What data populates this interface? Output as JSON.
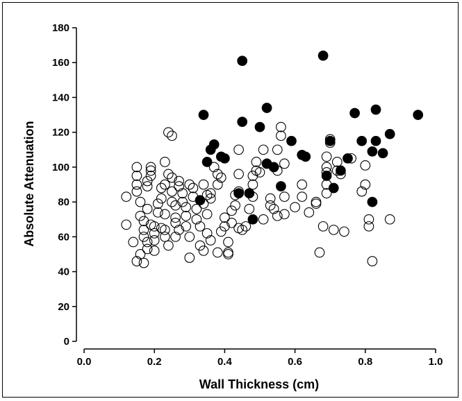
{
  "chart_data": {
    "type": "scatter",
    "title": "",
    "xlabel": "Wall Thickness (cm)",
    "ylabel": "Absolute Attenuation",
    "xlim": [
      0.0,
      1.0
    ],
    "ylim": [
      0,
      180
    ],
    "x_ticks": [
      "0.0",
      "0.2",
      "0.4",
      "0.6",
      "0.8",
      "1.0"
    ],
    "y_ticks": [
      "0",
      "20",
      "40",
      "60",
      "80",
      "100",
      "120",
      "140",
      "160",
      "180"
    ],
    "grid": false,
    "legend": "none",
    "colors": {
      "open_marker": "#000000",
      "filled_marker": "#000000",
      "axis": "#000000"
    },
    "series": [
      {
        "marker": "open",
        "points": [
          [
            0.12,
            67
          ],
          [
            0.12,
            83
          ],
          [
            0.14,
            57
          ],
          [
            0.15,
            46
          ],
          [
            0.15,
            100
          ],
          [
            0.15,
            95
          ],
          [
            0.15,
            90
          ],
          [
            0.15,
            86
          ],
          [
            0.16,
            80
          ],
          [
            0.16,
            72
          ],
          [
            0.17,
            69
          ],
          [
            0.17,
            64
          ],
          [
            0.17,
            60
          ],
          [
            0.16,
            50
          ],
          [
            0.17,
            45
          ],
          [
            0.18,
            57
          ],
          [
            0.18,
            53
          ],
          [
            0.18,
            89
          ],
          [
            0.18,
            92
          ],
          [
            0.18,
            76
          ],
          [
            0.19,
            95
          ],
          [
            0.19,
            98
          ],
          [
            0.19,
            100
          ],
          [
            0.19,
            67
          ],
          [
            0.2,
            66
          ],
          [
            0.2,
            62
          ],
          [
            0.2,
            58
          ],
          [
            0.2,
            52
          ],
          [
            0.21,
            79
          ],
          [
            0.21,
            74
          ],
          [
            0.22,
            65
          ],
          [
            0.22,
            82
          ],
          [
            0.22,
            88
          ],
          [
            0.23,
            90
          ],
          [
            0.23,
            73
          ],
          [
            0.23,
            64
          ],
          [
            0.23,
            60
          ],
          [
            0.24,
            55
          ],
          [
            0.24,
            120
          ],
          [
            0.25,
            118
          ],
          [
            0.24,
            96
          ],
          [
            0.25,
            94
          ],
          [
            0.25,
            86
          ],
          [
            0.25,
            80
          ],
          [
            0.26,
            78
          ],
          [
            0.26,
            71
          ],
          [
            0.26,
            68
          ],
          [
            0.27,
            64
          ],
          [
            0.27,
            92
          ],
          [
            0.27,
            89
          ],
          [
            0.28,
            85
          ],
          [
            0.28,
            80
          ],
          [
            0.29,
            77
          ],
          [
            0.29,
            72
          ],
          [
            0.29,
            66
          ],
          [
            0.3,
            60
          ],
          [
            0.3,
            48
          ],
          [
            0.3,
            90
          ],
          [
            0.31,
            88
          ],
          [
            0.31,
            83
          ],
          [
            0.32,
            76
          ],
          [
            0.32,
            70
          ],
          [
            0.33,
            66
          ],
          [
            0.33,
            55
          ],
          [
            0.34,
            52
          ],
          [
            0.34,
            79
          ],
          [
            0.35,
            84
          ],
          [
            0.35,
            73
          ],
          [
            0.35,
            62
          ],
          [
            0.36,
            58
          ],
          [
            0.36,
            82
          ],
          [
            0.36,
            85
          ],
          [
            0.37,
            100
          ],
          [
            0.38,
            96
          ],
          [
            0.38,
            90
          ],
          [
            0.38,
            51
          ],
          [
            0.39,
            63
          ],
          [
            0.4,
            71
          ],
          [
            0.4,
            66
          ],
          [
            0.41,
            57
          ],
          [
            0.41,
            51
          ],
          [
            0.41,
            50
          ],
          [
            0.42,
            68
          ],
          [
            0.42,
            75
          ],
          [
            0.43,
            78
          ],
          [
            0.43,
            84
          ],
          [
            0.44,
            86
          ],
          [
            0.44,
            96
          ],
          [
            0.44,
            110
          ],
          [
            0.45,
            64
          ],
          [
            0.46,
            66
          ],
          [
            0.47,
            76
          ],
          [
            0.48,
            83
          ],
          [
            0.48,
            90
          ],
          [
            0.48,
            95
          ],
          [
            0.49,
            98
          ],
          [
            0.49,
            103
          ],
          [
            0.5,
            97
          ],
          [
            0.51,
            70
          ],
          [
            0.51,
            110
          ],
          [
            0.52,
            102
          ],
          [
            0.53,
            78
          ],
          [
            0.53,
            82
          ],
          [
            0.54,
            76
          ],
          [
            0.55,
            72
          ],
          [
            0.55,
            98
          ],
          [
            0.55,
            110
          ],
          [
            0.56,
            118
          ],
          [
            0.56,
            123
          ],
          [
            0.57,
            102
          ],
          [
            0.57,
            83
          ],
          [
            0.57,
            73
          ],
          [
            0.6,
            77
          ],
          [
            0.62,
            83
          ],
          [
            0.62,
            90
          ],
          [
            0.64,
            74
          ],
          [
            0.66,
            80
          ],
          [
            0.66,
            79
          ],
          [
            0.67,
            51
          ],
          [
            0.68,
            66
          ],
          [
            0.69,
            85
          ],
          [
            0.69,
            90
          ],
          [
            0.69,
            97
          ],
          [
            0.69,
            100
          ],
          [
            0.69,
            106
          ],
          [
            0.7,
            114
          ],
          [
            0.7,
            116
          ],
          [
            0.71,
            64
          ],
          [
            0.72,
            98
          ],
          [
            0.72,
            103
          ],
          [
            0.73,
            96
          ],
          [
            0.74,
            63
          ],
          [
            0.76,
            105
          ],
          [
            0.79,
            86
          ],
          [
            0.8,
            90
          ],
          [
            0.8,
            101
          ],
          [
            0.81,
            66
          ],
          [
            0.81,
            70
          ],
          [
            0.82,
            46
          ],
          [
            0.87,
            70
          ],
          [
            0.44,
            65
          ],
          [
            0.39,
            94
          ],
          [
            0.34,
            90
          ],
          [
            0.26,
            60
          ],
          [
            0.23,
            103
          ]
        ]
      },
      {
        "marker": "filled",
        "points": [
          [
            0.34,
            130
          ],
          [
            0.35,
            103
          ],
          [
            0.36,
            110
          ],
          [
            0.37,
            113
          ],
          [
            0.39,
            106
          ],
          [
            0.4,
            105
          ],
          [
            0.33,
            81
          ],
          [
            0.44,
            85
          ],
          [
            0.45,
            126
          ],
          [
            0.45,
            161
          ],
          [
            0.47,
            85
          ],
          [
            0.48,
            70
          ],
          [
            0.5,
            123
          ],
          [
            0.52,
            134
          ],
          [
            0.52,
            102
          ],
          [
            0.54,
            100
          ],
          [
            0.56,
            89
          ],
          [
            0.59,
            115
          ],
          [
            0.62,
            107
          ],
          [
            0.63,
            106
          ],
          [
            0.68,
            164
          ],
          [
            0.69,
            95
          ],
          [
            0.7,
            115
          ],
          [
            0.71,
            88
          ],
          [
            0.73,
            98
          ],
          [
            0.75,
            105
          ],
          [
            0.77,
            131
          ],
          [
            0.79,
            115
          ],
          [
            0.82,
            80
          ],
          [
            0.82,
            109
          ],
          [
            0.83,
            133
          ],
          [
            0.83,
            115
          ],
          [
            0.85,
            108
          ],
          [
            0.87,
            119
          ],
          [
            0.95,
            130
          ]
        ]
      }
    ]
  }
}
